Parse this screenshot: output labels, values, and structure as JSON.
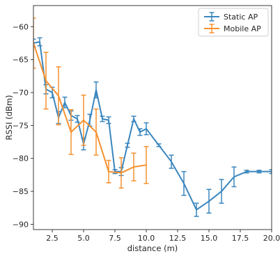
{
  "chart_data": {
    "type": "line",
    "xlabel": "distance (m)",
    "ylabel": "RSSI (dBm)",
    "xlim": [
      1,
      20
    ],
    "ylim": [
      -90.8,
      -56.8
    ],
    "xticks": [
      2.5,
      5.0,
      7.5,
      10.0,
      12.5,
      15.0,
      17.5,
      20.0
    ],
    "xtick_labels": [
      "2.5",
      "5.0",
      "7.5",
      "10.0",
      "12.5",
      "15.0",
      "17.5",
      "20.0"
    ],
    "yticks": [
      -60,
      -65,
      -70,
      -75,
      -80,
      -85,
      -90
    ],
    "ytick_labels": [
      "−60",
      "−65",
      "−70",
      "−75",
      "−80",
      "−85",
      "−90"
    ],
    "grid": false,
    "legend": "top-right",
    "series": [
      {
        "name": "Static AP",
        "color": "#3a86be",
        "x": [
          1,
          1.5,
          2,
          2.5,
          3,
          3.5,
          4,
          4.5,
          5,
          5.5,
          6,
          6.5,
          7,
          7.5,
          8,
          8.5,
          9,
          9.5,
          10,
          11,
          12,
          13,
          14,
          15,
          16,
          17,
          18,
          19,
          20
        ],
        "y": [
          -62.5,
          -62.3,
          -69.5,
          -70.0,
          -73.8,
          -71.5,
          -73.5,
          -74.0,
          -77.8,
          -74.2,
          -69.6,
          -74.0,
          -74.2,
          -82.0,
          -82.0,
          -78.0,
          -74.0,
          -76.0,
          -75.5,
          -78.0,
          -80.5,
          -83.8,
          -87.8,
          -86.5,
          -85.0,
          -82.8,
          -82.0,
          -82.0,
          -82.0
        ],
        "err": [
          0.6,
          0.6,
          0.7,
          0.8,
          0.9,
          0.8,
          0.7,
          0.5,
          0.9,
          0.9,
          1.2,
          0.4,
          0.5,
          0.3,
          0.6,
          0.3,
          0.4,
          0.5,
          0.9,
          0.2,
          1.0,
          1.8,
          1.0,
          1.8,
          1.8,
          1.5,
          0.2,
          0.2,
          0.3
        ]
      },
      {
        "name": "Mobile AP",
        "color": "#f5912e",
        "x": [
          1,
          2,
          3,
          4,
          5,
          6,
          7,
          8,
          9,
          10
        ],
        "y": [
          -62.5,
          -68.2,
          -70.5,
          -76.0,
          -74.2,
          -76.0,
          -82.0,
          -82.2,
          -81.3,
          -81.0
        ],
        "err": [
          3.8,
          4.3,
          4.4,
          3.4,
          3.8,
          3.5,
          1.7,
          2.3,
          2.1,
          2.8
        ]
      }
    ]
  }
}
